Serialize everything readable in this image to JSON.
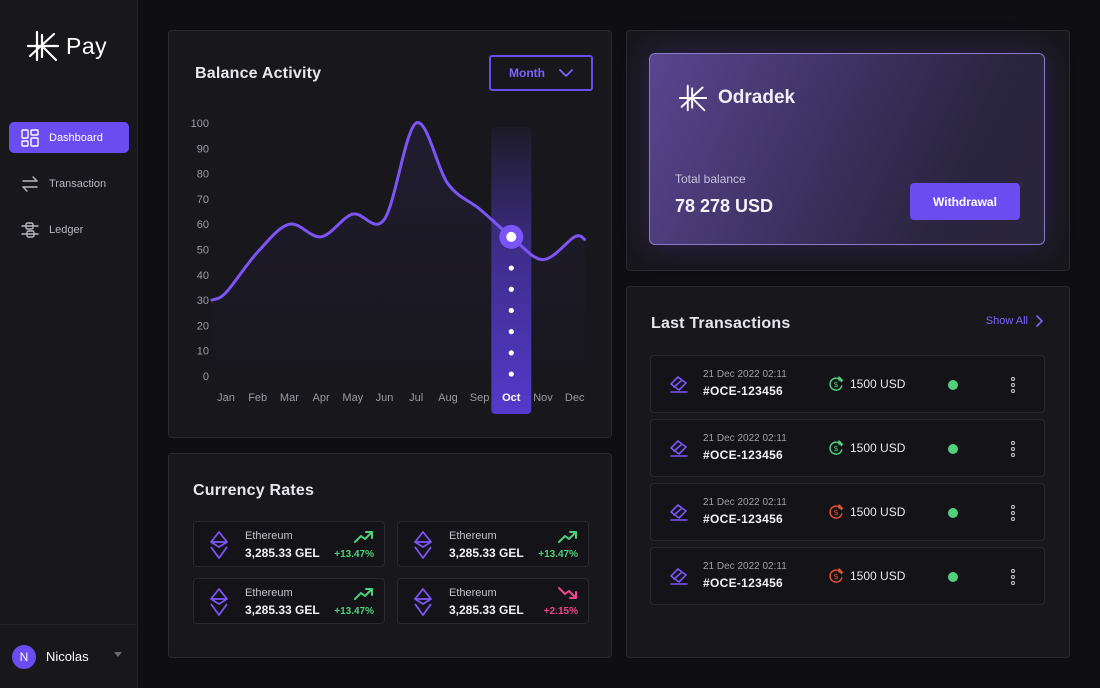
{
  "app": {
    "name": "Pay"
  },
  "nav": [
    {
      "label": "Dashboard",
      "icon": "dashboard-icon",
      "active": true
    },
    {
      "label": "Transaction",
      "icon": "transfer-icon",
      "active": false
    },
    {
      "label": "Ledger",
      "icon": "ledger-icon",
      "active": false
    }
  ],
  "user": {
    "initial": "N",
    "name": "Nicolas"
  },
  "balance": {
    "title": "Balance Activity",
    "period": "Month",
    "highlight_month": "Oct"
  },
  "chart_data": {
    "type": "line",
    "title": "Balance Activity",
    "categories": [
      "Jan",
      "Feb",
      "Mar",
      "Apr",
      "May",
      "Jun",
      "Jul",
      "Aug",
      "Sep",
      "Oct",
      "Nov",
      "Dec"
    ],
    "series": [
      {
        "name": "Balance",
        "values": [
          33,
          49,
          60,
          55,
          64,
          62,
          100,
          76,
          66,
          55,
          46,
          55
        ]
      }
    ],
    "yticks": [
      100,
      90,
      80,
      70,
      60,
      50,
      40,
      30,
      20,
      10,
      0
    ],
    "ylim": [
      0,
      100
    ],
    "highlight_index": 9,
    "colors": {
      "line": "#7b55f6",
      "highlight": "#5a3ee0"
    }
  },
  "card": {
    "brand": "Odradek",
    "balance_label": "Total balance",
    "balance_value": "78 278 USD",
    "action_label": "Withdrawal"
  },
  "rates": {
    "title": "Currency Rates",
    "items": [
      {
        "name": "Ethereum",
        "value": "3,285.33 GEL",
        "change": "+13.47%",
        "trend": "up"
      },
      {
        "name": "Ethereum",
        "value": "3,285.33 GEL",
        "change": "+13.47%",
        "trend": "up"
      },
      {
        "name": "Ethereum",
        "value": "3,285.33 GEL",
        "change": "+13.47%",
        "trend": "up"
      },
      {
        "name": "Ethereum",
        "value": "3,285.33 GEL",
        "change": "+2.15%",
        "trend": "down"
      }
    ]
  },
  "transactions": {
    "title": "Last Transactions",
    "show_all": "Show All",
    "items": [
      {
        "date": "21 Dec 2022 02:11",
        "id": "#OCE-123456",
        "amount": "1500 USD",
        "direction": "in"
      },
      {
        "date": "21 Dec 2022 02:11",
        "id": "#OCE-123456",
        "amount": "1500 USD",
        "direction": "in"
      },
      {
        "date": "21 Dec 2022 02:11",
        "id": "#OCE-123456",
        "amount": "1500 USD",
        "direction": "out"
      },
      {
        "date": "21 Dec 2022 02:11",
        "id": "#OCE-123456",
        "amount": "1500 USD",
        "direction": "out"
      }
    ]
  },
  "colors": {
    "accent": "#6a4df0",
    "positive": "#4fd07c",
    "negative": "#f0488f",
    "outgoing": "#e0533a"
  }
}
